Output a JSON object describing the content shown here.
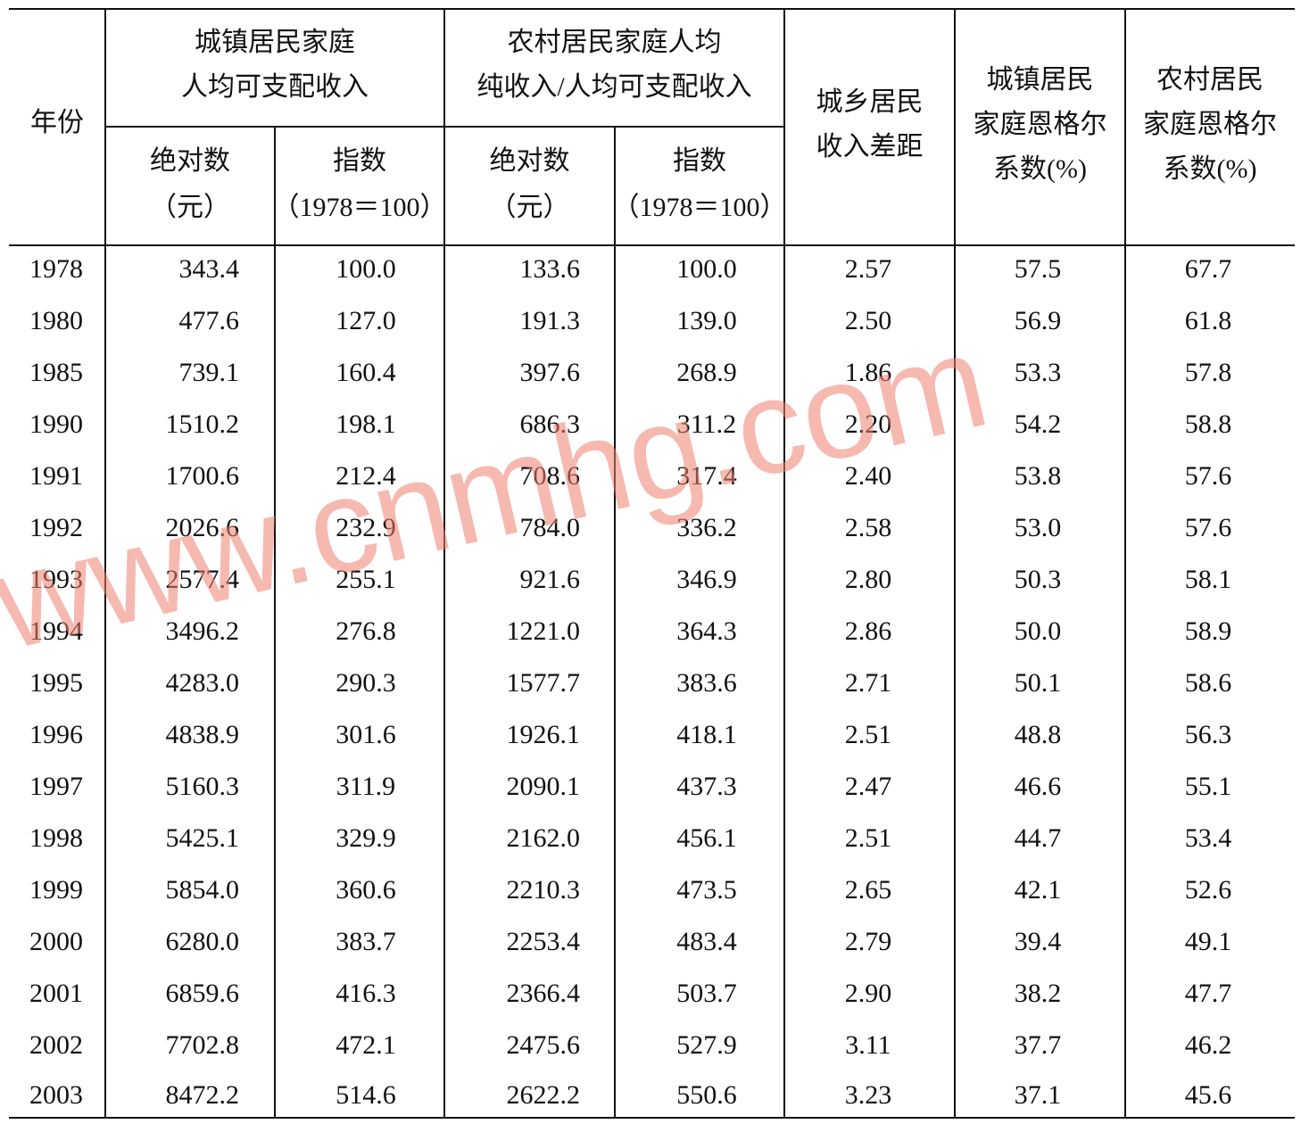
{
  "header": {
    "year": "年份",
    "groups": [
      {
        "lines": [
          "城镇居民家庭",
          "人均可支配收入"
        ],
        "sub": [
          [
            "绝对数",
            "（元）"
          ],
          [
            "指数",
            "（1978＝100）"
          ]
        ]
      },
      {
        "lines": [
          "农村居民家庭人均",
          "纯收入/人均可支配收入"
        ],
        "sub": [
          [
            "绝对数",
            "（元）"
          ],
          [
            "指数",
            "（1978＝100）"
          ]
        ]
      }
    ],
    "others": [
      [
        "城乡居民",
        "收入差距"
      ],
      [
        "城镇居民",
        "家庭恩格尔",
        "系数(%)"
      ],
      [
        "农村居民",
        "家庭恩格尔",
        "系数(%)"
      ]
    ]
  },
  "table": {
    "rows": [
      [
        "1978",
        "343.4",
        "100.0",
        "133.6",
        "100.0",
        "2.57",
        "57.5",
        "67.7"
      ],
      [
        "1980",
        "477.6",
        "127.0",
        "191.3",
        "139.0",
        "2.50",
        "56.9",
        "61.8"
      ],
      [
        "1985",
        "739.1",
        "160.4",
        "397.6",
        "268.9",
        "1.86",
        "53.3",
        "57.8"
      ],
      [
        "1990",
        "1510.2",
        "198.1",
        "686.3",
        "311.2",
        "2.20",
        "54.2",
        "58.8"
      ],
      [
        "1991",
        "1700.6",
        "212.4",
        "708.6",
        "317.4",
        "2.40",
        "53.8",
        "57.6"
      ],
      [
        "1992",
        "2026.6",
        "232.9",
        "784.0",
        "336.2",
        "2.58",
        "53.0",
        "57.6"
      ],
      [
        "1993",
        "2577.4",
        "255.1",
        "921.6",
        "346.9",
        "2.80",
        "50.3",
        "58.1"
      ],
      [
        "1994",
        "3496.2",
        "276.8",
        "1221.0",
        "364.3",
        "2.86",
        "50.0",
        "58.9"
      ],
      [
        "1995",
        "4283.0",
        "290.3",
        "1577.7",
        "383.6",
        "2.71",
        "50.1",
        "58.6"
      ],
      [
        "1996",
        "4838.9",
        "301.6",
        "1926.1",
        "418.1",
        "2.51",
        "48.8",
        "56.3"
      ],
      [
        "1997",
        "5160.3",
        "311.9",
        "2090.1",
        "437.3",
        "2.47",
        "46.6",
        "55.1"
      ],
      [
        "1998",
        "5425.1",
        "329.9",
        "2162.0",
        "456.1",
        "2.51",
        "44.7",
        "53.4"
      ],
      [
        "1999",
        "5854.0",
        "360.6",
        "2210.3",
        "473.5",
        "2.65",
        "42.1",
        "52.6"
      ],
      [
        "2000",
        "6280.0",
        "383.7",
        "2253.4",
        "483.4",
        "2.79",
        "39.4",
        "49.1"
      ],
      [
        "2001",
        "6859.6",
        "416.3",
        "2366.4",
        "503.7",
        "2.90",
        "38.2",
        "47.7"
      ],
      [
        "2002",
        "7702.8",
        "472.1",
        "2475.6",
        "527.9",
        "3.11",
        "37.7",
        "46.2"
      ],
      [
        "2003",
        "8472.2",
        "514.6",
        "2622.2",
        "550.6",
        "3.23",
        "37.1",
        "45.6"
      ]
    ]
  },
  "watermark": "www.cnmhg.com"
}
